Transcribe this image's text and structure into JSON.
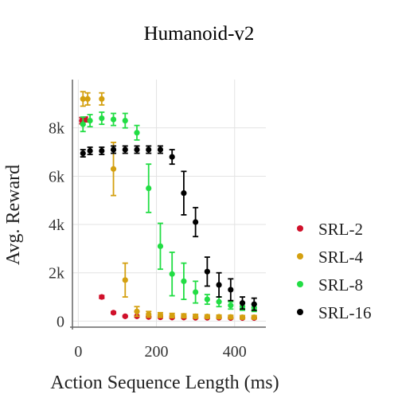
{
  "chart_data": {
    "type": "scatter",
    "title": "Humanoid-v2",
    "xlabel": "Action Sequence Length (ms)",
    "ylabel": "Avg. Reward",
    "xlim": [
      -15,
      480
    ],
    "ylim": [
      -250,
      10000
    ],
    "xticks": [
      0,
      200,
      400
    ],
    "xtick_labels": [
      "0",
      "200",
      "400"
    ],
    "yticks": [
      0,
      2000,
      4000,
      6000,
      8000
    ],
    "ytick_labels": [
      "0",
      "2k",
      "4k",
      "6k",
      "8k"
    ],
    "grid": true,
    "legend_position": "right",
    "series": [
      {
        "name": "SRL-2",
        "color": "#d0102a",
        "points": [
          {
            "x": 9,
            "y": 8300,
            "err": 130
          },
          {
            "x": 18,
            "y": 8350,
            "err": 100
          },
          {
            "x": 60,
            "y": 1000,
            "err": 60
          },
          {
            "x": 90,
            "y": 350,
            "err": 40
          },
          {
            "x": 120,
            "y": 200,
            "err": 30
          },
          {
            "x": 150,
            "y": 200,
            "err": 30
          },
          {
            "x": 180,
            "y": 170,
            "err": 30
          },
          {
            "x": 210,
            "y": 160,
            "err": 30
          },
          {
            "x": 240,
            "y": 150,
            "err": 30
          },
          {
            "x": 270,
            "y": 150,
            "err": 30
          },
          {
            "x": 300,
            "y": 140,
            "err": 30
          },
          {
            "x": 330,
            "y": 140,
            "err": 30
          },
          {
            "x": 360,
            "y": 140,
            "err": 30
          },
          {
            "x": 390,
            "y": 130,
            "err": 30
          },
          {
            "x": 420,
            "y": 130,
            "err": 30
          },
          {
            "x": 450,
            "y": 130,
            "err": 30
          }
        ]
      },
      {
        "name": "SRL-4",
        "color": "#d4a010",
        "points": [
          {
            "x": 12,
            "y": 9200,
            "err": 300
          },
          {
            "x": 24,
            "y": 9200,
            "err": 250
          },
          {
            "x": 60,
            "y": 9200,
            "err": 250
          },
          {
            "x": 90,
            "y": 6300,
            "err": 1100
          },
          {
            "x": 120,
            "y": 1700,
            "err": 700
          },
          {
            "x": 150,
            "y": 400,
            "err": 200
          },
          {
            "x": 180,
            "y": 280,
            "err": 120
          },
          {
            "x": 210,
            "y": 250,
            "err": 100
          },
          {
            "x": 240,
            "y": 230,
            "err": 90
          },
          {
            "x": 270,
            "y": 220,
            "err": 80
          },
          {
            "x": 300,
            "y": 200,
            "err": 80
          },
          {
            "x": 330,
            "y": 190,
            "err": 70
          },
          {
            "x": 360,
            "y": 180,
            "err": 70
          },
          {
            "x": 390,
            "y": 170,
            "err": 70
          },
          {
            "x": 420,
            "y": 160,
            "err": 70
          },
          {
            "x": 450,
            "y": 160,
            "err": 70
          }
        ]
      },
      {
        "name": "SRL-8",
        "color": "#22dd44",
        "points": [
          {
            "x": 12,
            "y": 8150,
            "err": 300
          },
          {
            "x": 30,
            "y": 8300,
            "err": 250
          },
          {
            "x": 60,
            "y": 8400,
            "err": 250
          },
          {
            "x": 90,
            "y": 8350,
            "err": 250
          },
          {
            "x": 120,
            "y": 8300,
            "err": 300
          },
          {
            "x": 150,
            "y": 7800,
            "err": 300
          },
          {
            "x": 180,
            "y": 5500,
            "err": 1000
          },
          {
            "x": 210,
            "y": 3100,
            "err": 950
          },
          {
            "x": 240,
            "y": 1950,
            "err": 900
          },
          {
            "x": 270,
            "y": 1650,
            "err": 750
          },
          {
            "x": 300,
            "y": 1200,
            "err": 450
          },
          {
            "x": 330,
            "y": 900,
            "err": 200
          },
          {
            "x": 360,
            "y": 800,
            "err": 200
          },
          {
            "x": 390,
            "y": 650,
            "err": 150
          },
          {
            "x": 420,
            "y": 600,
            "err": 150
          },
          {
            "x": 450,
            "y": 550,
            "err": 150
          }
        ]
      },
      {
        "name": "SRL-16",
        "color": "#000000",
        "points": [
          {
            "x": 12,
            "y": 6950,
            "err": 150
          },
          {
            "x": 30,
            "y": 7050,
            "err": 150
          },
          {
            "x": 60,
            "y": 7050,
            "err": 150
          },
          {
            "x": 90,
            "y": 7100,
            "err": 150
          },
          {
            "x": 120,
            "y": 7100,
            "err": 150
          },
          {
            "x": 150,
            "y": 7100,
            "err": 150
          },
          {
            "x": 180,
            "y": 7100,
            "err": 150
          },
          {
            "x": 210,
            "y": 7100,
            "err": 150
          },
          {
            "x": 240,
            "y": 6800,
            "err": 300
          },
          {
            "x": 270,
            "y": 5300,
            "err": 900
          },
          {
            "x": 300,
            "y": 4100,
            "err": 600
          },
          {
            "x": 330,
            "y": 2050,
            "err": 600
          },
          {
            "x": 360,
            "y": 1500,
            "err": 500
          },
          {
            "x": 390,
            "y": 1300,
            "err": 450
          },
          {
            "x": 420,
            "y": 750,
            "err": 250
          },
          {
            "x": 450,
            "y": 700,
            "err": 250
          }
        ]
      }
    ]
  }
}
